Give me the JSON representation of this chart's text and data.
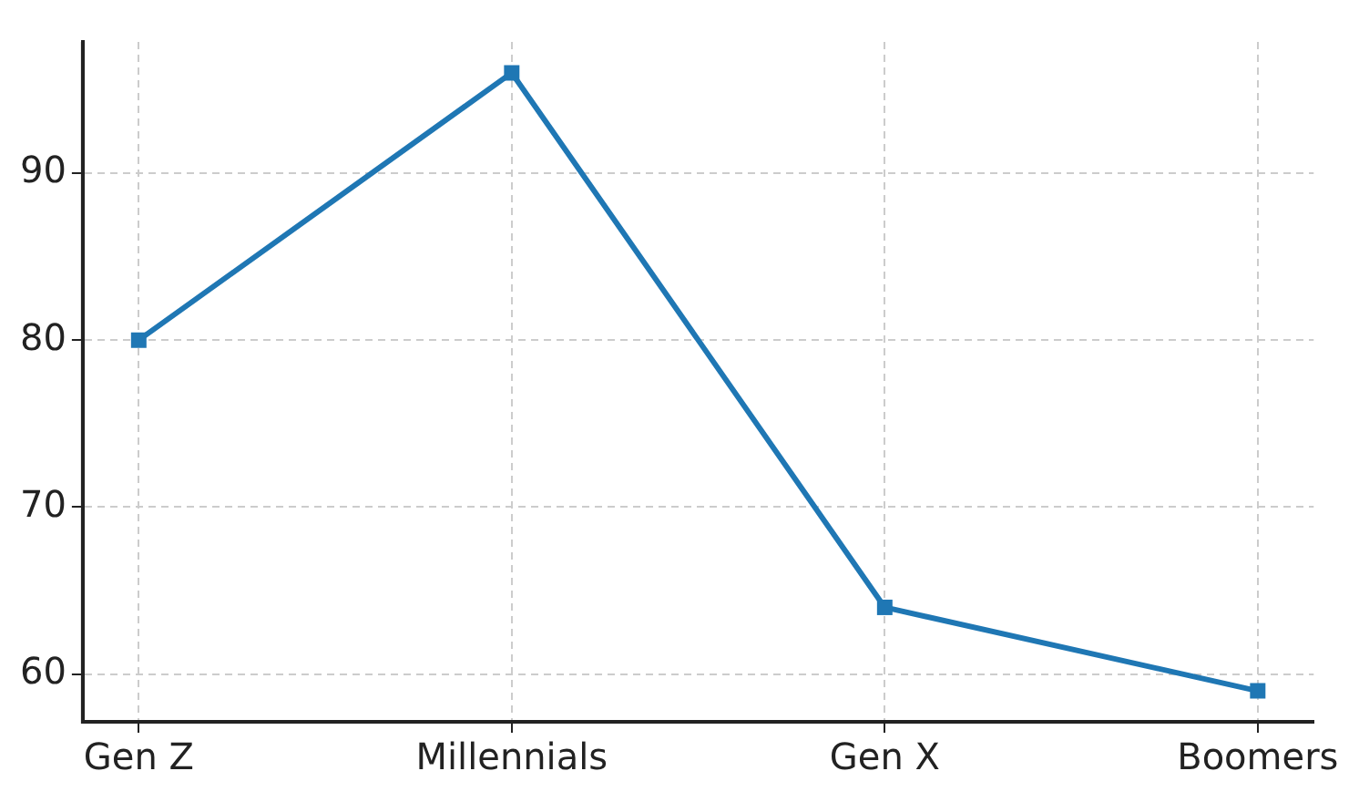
{
  "chart_data": {
    "type": "line",
    "categories": [
      "Gen Z",
      "Millennials",
      "Gen X",
      "Boomers"
    ],
    "series": [
      {
        "color": "#1f77b4",
        "values": [
          80,
          96,
          64,
          59
        ]
      }
    ],
    "ylim": [
      57.15,
      97.85
    ],
    "yticks": [
      60,
      70,
      80,
      90
    ],
    "grid": true,
    "marker": "square",
    "line_style": "solid",
    "legend": false
  }
}
